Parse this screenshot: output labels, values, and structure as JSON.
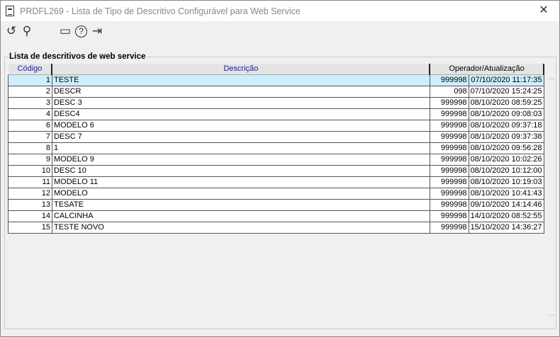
{
  "window": {
    "title": "PRDFL269 - Lista de Tipo de Descritivo Configurável para Web Service",
    "close": "✕"
  },
  "toolbar": [
    {
      "icon": "refresh-icon",
      "glyph": "↺"
    },
    {
      "icon": "search-icon",
      "glyph": "⚲"
    },
    {
      "icon": "calendar-icon",
      "glyph": "▭"
    },
    {
      "icon": "help-icon",
      "glyph": "?"
    },
    {
      "icon": "exit-icon",
      "glyph": "⇥"
    }
  ],
  "group": {
    "label": "Lista de descritivos de web service"
  },
  "table": {
    "headers": [
      "Código",
      "Descrição",
      "Operador/Atualização"
    ],
    "rows": [
      [
        "1",
        "TESTE",
        "999998",
        "07/10/2020 11:17:35"
      ],
      [
        "2",
        "DESCR",
        "098",
        "07/10/2020 15:24:25"
      ],
      [
        "3",
        "DESC 3",
        "999998",
        "08/10/2020 08:59:25"
      ],
      [
        "4",
        "DESC4",
        "999998",
        "08/10/2020 09:08:03"
      ],
      [
        "6",
        "MODELO 6",
        "999998",
        "08/10/2020 09:37:18"
      ],
      [
        "7",
        "DESC 7",
        "999998",
        "08/10/2020 09:37:38"
      ],
      [
        "8",
        "1",
        "999998",
        "08/10/2020 09:56:28"
      ],
      [
        "9",
        "MODELO 9",
        "999998",
        "08/10/2020 10:02:26"
      ],
      [
        "10",
        "DESC 10",
        "999998",
        "08/10/2020 10:12:00"
      ],
      [
        "11",
        "MODELO 11",
        "999998",
        "08/10/2020 10:19:03"
      ],
      [
        "12",
        "MODELO",
        "999998",
        "08/10/2020 10:41:43"
      ],
      [
        "13",
        "TESATE",
        "999998",
        "09/10/2020 14:14:46"
      ],
      [
        "14",
        "CALCINHA",
        "999998",
        "14/10/2020 08:52:55"
      ],
      [
        "15",
        "TESTE NOVO",
        "999998",
        "15/10/2020 14:36:27"
      ]
    ],
    "selected_row": 0
  }
}
